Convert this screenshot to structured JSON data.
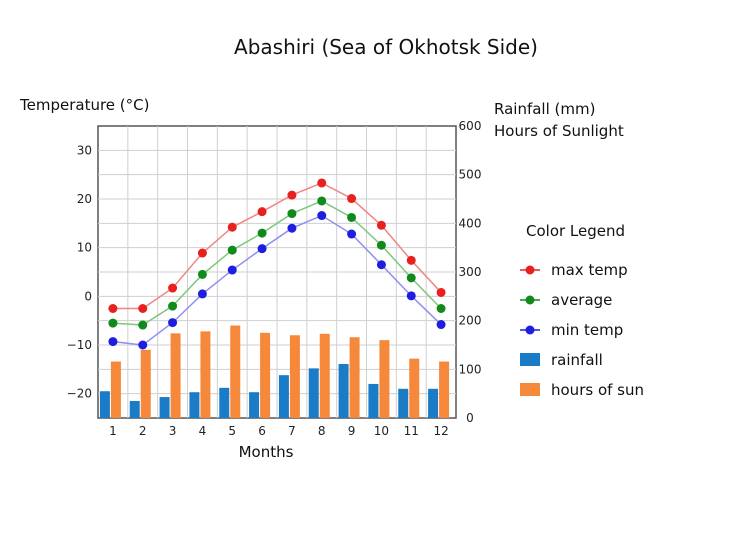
{
  "chart_data": {
    "type": "combo",
    "title": "Abashiri (Sea of Okhotsk Side)",
    "xlabel": "Months",
    "ylabel_left": "Temperature (°C)",
    "ylabel_right_1": "Rainfall (mm)",
    "ylabel_right_2": "Hours of Sunlight",
    "legend_title": "Color Legend",
    "legend_position": "right",
    "grid": true,
    "categories": [
      "1",
      "2",
      "3",
      "4",
      "5",
      "6",
      "7",
      "8",
      "9",
      "10",
      "11",
      "12"
    ],
    "left_axis": {
      "ylim": [
        -25,
        35
      ],
      "ticks": [
        30,
        20,
        10,
        0,
        -10,
        -20
      ]
    },
    "right_axis": {
      "ylim": [
        0,
        600
      ],
      "ticks": [
        600,
        500,
        400,
        300,
        200,
        100,
        0
      ]
    },
    "temp_series": [
      {
        "name": "max temp",
        "color": "#e8211e",
        "line_color": "#f08585",
        "values": [
          -2.5,
          -2.5,
          1.7,
          8.9,
          14.2,
          17.4,
          20.8,
          23.3,
          20.1,
          14.6,
          7.4,
          0.8
        ]
      },
      {
        "name": "average",
        "color": "#118a1c",
        "line_color": "#7cc879",
        "values": [
          -5.5,
          -5.9,
          -2.0,
          4.5,
          9.5,
          13.0,
          17.0,
          19.6,
          16.2,
          10.5,
          3.8,
          -2.5
        ]
      },
      {
        "name": "min temp",
        "color": "#1d1ee0",
        "line_color": "#8f8ff0",
        "values": [
          -9.3,
          -10.0,
          -5.4,
          0.5,
          5.4,
          9.8,
          14.0,
          16.6,
          12.8,
          6.5,
          0.1,
          -5.8
        ]
      }
    ],
    "bar_series": [
      {
        "name": "rainfall",
        "color": "#1a7cc7",
        "values": [
          55,
          35,
          43,
          53,
          62,
          53,
          88,
          102,
          111,
          70,
          60,
          60
        ]
      },
      {
        "name": "hours of sun",
        "color": "#f5883a",
        "values": [
          116,
          140,
          174,
          178,
          190,
          175,
          170,
          173,
          166,
          160,
          122,
          116
        ]
      }
    ]
  }
}
